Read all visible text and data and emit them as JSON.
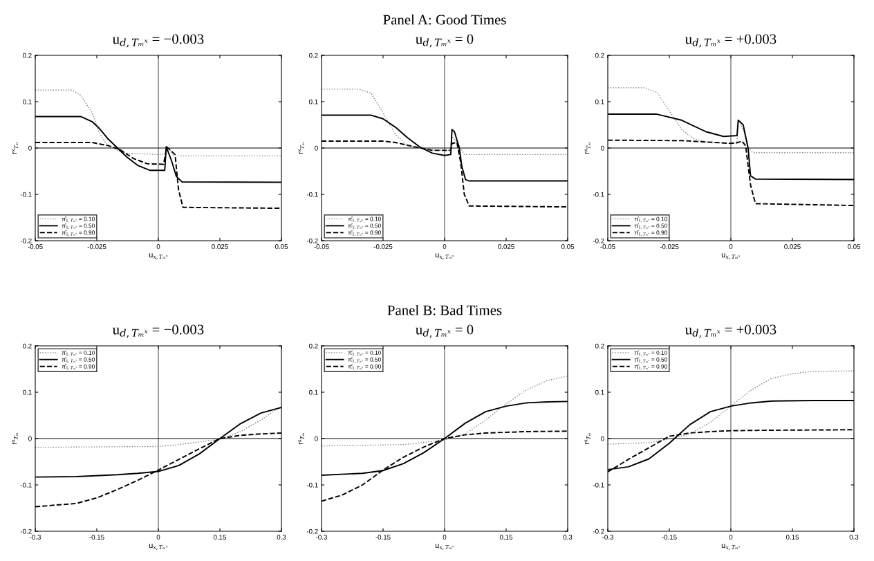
{
  "chart_data": [
    {
      "type": "line",
      "title": "u$_{d,Tₘˣ}$ = −0.003",
      "xlabel": "u$_{x,Tₘˣ}$",
      "ylabel": "rˣ$_{Tₘ}$",
      "xlim": [
        -0.05,
        0.05
      ],
      "ylim": [
        -0.2,
        0.2
      ],
      "xticks": [
        -0.05,
        -0.025,
        0,
        0.025,
        0.05
      ],
      "yticks": [
        -0.2,
        -0.1,
        0,
        0.1,
        0.2
      ],
      "legend": "bottom left",
      "grid": false,
      "ref_lines": [
        {
          "axis": "x",
          "value": 0,
          "color": "#555555"
        },
        {
          "axis": "y",
          "value": 0,
          "color": "#000000"
        }
      ],
      "series": [
        {
          "name": "π̂$_{1,Tₘˣ}$ = 0.10",
          "color": "#808080",
          "line_style": "dotted",
          "x": [
            -0.05,
            -0.035,
            -0.0316,
            -0.0269,
            -0.0241,
            -0.0213,
            -0.0175,
            -0.0129,
            0,
            0.0026,
            0.0033,
            0.0045,
            0.006,
            0.008,
            0.05
          ],
          "values": [
            0.125,
            0.125,
            0.114,
            0.076,
            0.034,
            0.01,
            -0.004,
            -0.011,
            -0.014,
            -0.013,
            0.002,
            0,
            -0.015,
            -0.017,
            -0.017
          ]
        },
        {
          "name": "π̂$_{1,Tₘˣ}$ = 0.50",
          "color": "#000000",
          "line_style": "solid",
          "x": [
            -0.05,
            -0.0316,
            -0.0269,
            -0.0241,
            -0.0203,
            -0.0166,
            -0.0129,
            -0.0082,
            -0.0035,
            0.0026,
            0.0032,
            0.0054,
            0.0073,
            0.0096,
            0.05
          ],
          "values": [
            0.068,
            0.068,
            0.057,
            0.043,
            0.019,
            0,
            -0.019,
            -0.038,
            -0.048,
            -0.048,
            0.003,
            -0.028,
            -0.061,
            -0.073,
            -0.074
          ]
        },
        {
          "name": "π̂$_{1,Tₘˣ}$ = 0.90",
          "color": "#000000",
          "line_style": "dashed",
          "x": [
            -0.05,
            -0.027,
            -0.0203,
            -0.0157,
            -0.01,
            -0.0044,
            0.0021,
            0.0035,
            0.0068,
            0.0082,
            0.01,
            0.05
          ],
          "values": [
            0.012,
            0.012,
            0.005,
            -0.003,
            -0.023,
            -0.034,
            -0.035,
            0.002,
            -0.014,
            -0.09,
            -0.128,
            -0.13
          ]
        }
      ]
    },
    {
      "type": "line",
      "subtitle": "Panel A: Good Times",
      "title": "u$_{d,Tₘˣ}$ = 0",
      "xlabel": "u$_{x,Tₘˣ}$",
      "ylabel": "rˣ$_{Tₘ}$",
      "xlim": [
        -0.05,
        0.05
      ],
      "ylim": [
        -0.2,
        0.2
      ],
      "xticks": [
        -0.05,
        -0.025,
        0,
        0.025,
        0.05
      ],
      "yticks": [
        -0.2,
        -0.1,
        0,
        0.1,
        0.2
      ],
      "legend": "bottom left",
      "grid": false,
      "ref_lines": [
        {
          "axis": "x",
          "value": 0,
          "color": "#555555"
        },
        {
          "axis": "y",
          "value": 0,
          "color": "#000000"
        }
      ],
      "series": [
        {
          "name": "π̂$_{1,Tₘˣ}$ = 0.10",
          "color": "#808080",
          "line_style": "dotted",
          "x": [
            -0.05,
            -0.035,
            -0.03,
            -0.025,
            -0.02,
            -0.015,
            -0.01,
            -0.005,
            0,
            0.0025,
            0.003,
            0.006,
            0.008,
            0.05
          ],
          "values": [
            0.127,
            0.127,
            0.119,
            0.076,
            0.029,
            0.005,
            0,
            -0.004,
            -0.005,
            -0.005,
            0.025,
            0.005,
            -0.014,
            -0.014
          ]
        },
        {
          "name": "π̂$_{1,Tₘˣ}$ = 0.50",
          "color": "#000000",
          "line_style": "solid",
          "x": [
            -0.05,
            -0.03,
            -0.025,
            -0.02,
            -0.015,
            -0.01,
            -0.005,
            0,
            0.0025,
            0.003,
            0.004,
            0.006,
            0.007,
            0.0085,
            0.01,
            0.05
          ],
          "values": [
            0.071,
            0.071,
            0.063,
            0.045,
            0.022,
            0.002,
            -0.011,
            -0.016,
            -0.014,
            0.04,
            0.035,
            0,
            -0.04,
            -0.068,
            -0.071,
            -0.071
          ]
        },
        {
          "name": "π̂$_{1,Tₘˣ}$ = 0.90",
          "color": "#000000",
          "line_style": "dashed",
          "x": [
            -0.05,
            -0.025,
            -0.02,
            -0.015,
            -0.01,
            -0.005,
            0.0025,
            0.003,
            0.005,
            0.0065,
            0.008,
            0.01,
            0.05
          ],
          "values": [
            0.015,
            0.015,
            0.012,
            0.006,
            0,
            -0.005,
            -0.005,
            0.01,
            0.012,
            -0.03,
            -0.1,
            -0.125,
            -0.127
          ]
        }
      ]
    },
    {
      "type": "line",
      "title": "u$_{d,Tₘˣ}$ = +0.003",
      "xlabel": "u$_{x,Tₘˣ}$",
      "ylabel": "rˣ$_{Tₘ}$",
      "xlim": [
        -0.05,
        0.05
      ],
      "ylim": [
        -0.2,
        0.2
      ],
      "xticks": [
        -0.05,
        -0.025,
        0,
        0.025,
        0.05
      ],
      "yticks": [
        -0.2,
        -0.1,
        0,
        0.1,
        0.2
      ],
      "legend": "bottom left",
      "grid": false,
      "ref_lines": [
        {
          "axis": "x",
          "value": 0,
          "color": "#555555"
        },
        {
          "axis": "y",
          "value": 0,
          "color": "#000000"
        }
      ],
      "series": [
        {
          "name": "π̂$_{1,Tₘˣ}$ = 0.10",
          "color": "#808080",
          "line_style": "dotted",
          "x": [
            -0.05,
            -0.035,
            -0.03,
            -0.025,
            -0.02,
            -0.015,
            -0.01,
            0,
            0.0025,
            0.003,
            0.005,
            0.007,
            0.009,
            0.05
          ],
          "values": [
            0.13,
            0.13,
            0.12,
            0.08,
            0.04,
            0.02,
            0.013,
            0.01,
            0.01,
            0.06,
            0.04,
            0,
            -0.01,
            -0.01
          ]
        },
        {
          "name": "π̂$_{1,Tₘˣ}$ = 0.50",
          "color": "#000000",
          "line_style": "solid",
          "x": [
            -0.05,
            -0.03,
            -0.02,
            -0.01,
            -0.003,
            0.0025,
            0.003,
            0.005,
            0.007,
            0.008,
            0.01,
            0.05
          ],
          "values": [
            0.073,
            0.073,
            0.06,
            0.035,
            0.025,
            0.027,
            0.06,
            0.05,
            0,
            -0.06,
            -0.067,
            -0.068
          ]
        },
        {
          "name": "π̂$_{1,Tₘˣ}$ = 0.90",
          "color": "#000000",
          "line_style": "dashed",
          "x": [
            -0.05,
            -0.02,
            0,
            0.003,
            0.0045,
            0.006,
            0.008,
            0.01,
            0.05
          ],
          "values": [
            0.017,
            0.016,
            0.01,
            0.012,
            0.015,
            0.005,
            -0.08,
            -0.12,
            -0.124
          ]
        }
      ]
    },
    {
      "type": "line",
      "title": "u$_{d,Tₘˣ}$ = −0.003",
      "xlabel": "u$_{x,Tₘˣ}$",
      "ylabel": "rˣ$_{Tₘ}$",
      "xlim": [
        -0.3,
        0.3
      ],
      "ylim": [
        -0.2,
        0.2
      ],
      "xticks": [
        -0.3,
        -0.15,
        0,
        0.15,
        0.3
      ],
      "yticks": [
        -0.2,
        -0.1,
        0,
        0.1,
        0.2
      ],
      "legend": "top left",
      "grid": false,
      "ref_lines": [
        {
          "axis": "x",
          "value": 0,
          "color": "#555555"
        },
        {
          "axis": "y",
          "value": 0,
          "color": "#000000"
        }
      ],
      "series": [
        {
          "name": "π̂$_{1,Tₘˣ}$ = 0.10",
          "color": "#808080",
          "line_style": "dotted",
          "x": [
            -0.3,
            -0.15,
            0,
            0.05,
            0.1,
            0.15,
            0.2,
            0.25,
            0.3
          ],
          "values": [
            -0.019,
            -0.018,
            -0.017,
            -0.013,
            -0.007,
            -0.002,
            0.015,
            0.04,
            0.07
          ]
        },
        {
          "name": "π̂$_{1,Tₘˣ}$ = 0.50",
          "color": "#000000",
          "line_style": "solid",
          "x": [
            -0.3,
            -0.2,
            -0.1,
            -0.05,
            0,
            0.05,
            0.1,
            0.15,
            0.2,
            0.25,
            0.3
          ],
          "values": [
            -0.083,
            -0.082,
            -0.078,
            -0.075,
            -0.071,
            -0.058,
            -0.033,
            0,
            0.032,
            0.055,
            0.067
          ]
        },
        {
          "name": "π̂$_{1,Tₘˣ}$ = 0.90",
          "color": "#000000",
          "line_style": "dashed",
          "x": [
            -0.3,
            -0.2,
            -0.15,
            -0.1,
            -0.05,
            0,
            0.05,
            0.1,
            0.15,
            0.2,
            0.25,
            0.3
          ],
          "values": [
            -0.147,
            -0.14,
            -0.128,
            -0.11,
            -0.09,
            -0.068,
            -0.045,
            -0.022,
            0,
            0.007,
            0.01,
            0.012
          ]
        }
      ]
    },
    {
      "type": "line",
      "subtitle": "Panel B: Bad Times",
      "title": "u$_{d,Tₘˣ}$ = 0",
      "xlabel": "u$_{x,Tₘˣ}$",
      "ylabel": "rˣ$_{Tₘ}$",
      "xlim": [
        -0.3,
        0.3
      ],
      "ylim": [
        -0.2,
        0.2
      ],
      "xticks": [
        -0.3,
        -0.15,
        0,
        0.15,
        0.3
      ],
      "yticks": [
        -0.2,
        -0.1,
        0,
        0.1,
        0.2
      ],
      "legend": "top left",
      "grid": false,
      "ref_lines": [
        {
          "axis": "x",
          "value": 0,
          "color": "#555555"
        },
        {
          "axis": "y",
          "value": 0,
          "color": "#000000"
        }
      ],
      "series": [
        {
          "name": "π̂$_{1,Tₘˣ}$ = 0.10",
          "color": "#808080",
          "line_style": "dotted",
          "x": [
            -0.3,
            -0.1,
            0,
            0.05,
            0.1,
            0.15,
            0.2,
            0.25,
            0.3
          ],
          "values": [
            -0.016,
            -0.013,
            -0.003,
            0.01,
            0.04,
            0.075,
            0.105,
            0.125,
            0.135
          ]
        },
        {
          "name": "π̂$_{1,Tₘˣ}$ = 0.50",
          "color": "#000000",
          "line_style": "solid",
          "x": [
            -0.3,
            -0.2,
            -0.15,
            -0.1,
            -0.05,
            0,
            0.05,
            0.1,
            0.15,
            0.2,
            0.25,
            0.3
          ],
          "values": [
            -0.079,
            -0.075,
            -0.069,
            -0.054,
            -0.03,
            0,
            0.033,
            0.058,
            0.07,
            0.077,
            0.079,
            0.08
          ]
        },
        {
          "name": "π̂$_{1,Tₘˣ}$ = 0.90",
          "color": "#000000",
          "line_style": "dashed",
          "x": [
            -0.3,
            -0.25,
            -0.2,
            -0.15,
            -0.1,
            -0.05,
            0,
            0.05,
            0.1,
            0.2,
            0.3
          ],
          "values": [
            -0.135,
            -0.122,
            -0.1,
            -0.068,
            -0.04,
            -0.018,
            0,
            0.008,
            0.012,
            0.015,
            0.016
          ]
        }
      ]
    },
    {
      "type": "line",
      "title": "u$_{d,Tₘˣ}$ = +0.003",
      "xlabel": "u$_{x,Tₘˣ}$",
      "ylabel": "rˣ$_{Tₘ}$",
      "xlim": [
        -0.3,
        0.3
      ],
      "ylim": [
        -0.2,
        0.2
      ],
      "xticks": [
        -0.3,
        -0.15,
        0,
        0.15,
        0.3
      ],
      "yticks": [
        -0.2,
        -0.1,
        0,
        0.1,
        0.2
      ],
      "legend": "top left",
      "grid": false,
      "ref_lines": [
        {
          "axis": "x",
          "value": 0,
          "color": "#555555"
        },
        {
          "axis": "y",
          "value": 0,
          "color": "#000000"
        }
      ],
      "series": [
        {
          "name": "π̂$_{1,Tₘˣ}$ = 0.10",
          "color": "#808080",
          "line_style": "dotted",
          "x": [
            -0.3,
            -0.2,
            -0.15,
            -0.1,
            -0.05,
            0,
            0.05,
            0.1,
            0.15,
            0.2,
            0.3
          ],
          "values": [
            -0.012,
            -0.009,
            -0.001,
            0.01,
            0.035,
            0.07,
            0.105,
            0.13,
            0.14,
            0.145,
            0.146
          ]
        },
        {
          "name": "π̂$_{1,Tₘˣ}$ = 0.50",
          "color": "#000000",
          "line_style": "solid",
          "x": [
            -0.3,
            -0.25,
            -0.2,
            -0.15,
            -0.1,
            -0.05,
            0,
            0.05,
            0.1,
            0.2,
            0.3
          ],
          "values": [
            -0.067,
            -0.061,
            -0.044,
            -0.01,
            0.03,
            0.058,
            0.07,
            0.077,
            0.081,
            0.082,
            0.082
          ]
        },
        {
          "name": "π̂$_{1,Tₘˣ}$ = 0.90",
          "color": "#000000",
          "line_style": "dashed",
          "x": [
            -0.3,
            -0.25,
            -0.2,
            -0.15,
            -0.1,
            -0.05,
            0,
            0.1,
            0.3
          ],
          "values": [
            -0.072,
            -0.045,
            -0.02,
            0.005,
            0.012,
            0.015,
            0.017,
            0.018,
            0.019
          ]
        }
      ]
    }
  ]
}
